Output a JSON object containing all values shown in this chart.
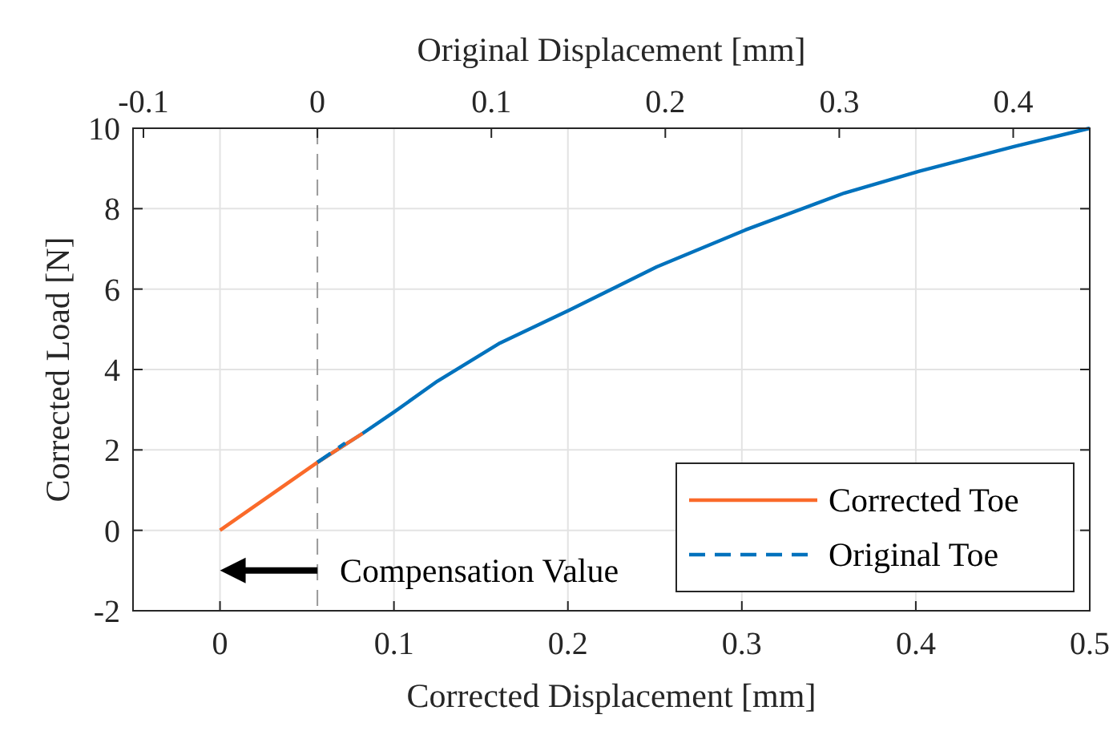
{
  "chart_data": {
    "type": "line",
    "xlabel": "Corrected Displacement [mm]",
    "ylabel": "Corrected Load [N]",
    "x2label": "Original Displacement [mm]",
    "xlim": [
      -0.05,
      0.5
    ],
    "xticks": [
      0,
      0.1,
      0.2,
      0.3,
      0.4,
      0.5
    ],
    "x2lim": [
      -0.106,
      0.444
    ],
    "x2ticks": [
      -0.1,
      0,
      0.1,
      0.2,
      0.3,
      0.4
    ],
    "ylim": [
      -2,
      10
    ],
    "yticks": [
      -2,
      0,
      2,
      4,
      6,
      8,
      10
    ],
    "grid": true,
    "legend": "bottom right",
    "series": [
      {
        "color": "#0072bd",
        "line_style": "solid",
        "x": [
          0.056,
          0.082,
          0.1,
          0.125,
          0.161,
          0.201,
          0.251,
          0.302,
          0.359,
          0.402,
          0.456,
          0.5
        ],
        "values": [
          1.69,
          2.41,
          2.94,
          3.71,
          4.66,
          5.48,
          6.55,
          7.47,
          8.39,
          8.93,
          9.54,
          10
        ]
      },
      {
        "name": "Corrected Toe",
        "color": "#fa6a2a",
        "line_style": "solid",
        "x": [
          0,
          0.056,
          0.082
        ],
        "values": [
          0,
          1.69,
          2.41
        ]
      },
      {
        "name": "Original Toe",
        "color": "#0072bd",
        "line_style": "dashed",
        "x": [
          0.056,
          0.072
        ],
        "values": [
          1.69,
          2.17
        ]
      }
    ],
    "ref_lines": [
      {
        "axis": "x",
        "value": 0.056,
        "color": "#999999",
        "line_style": "dashed"
      }
    ],
    "annotations": [
      {
        "text": "Compensation Value",
        "x": 0.056,
        "y": -1
      }
    ]
  }
}
